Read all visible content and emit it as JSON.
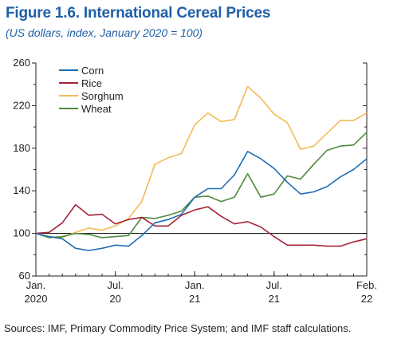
{
  "figure": {
    "title": "Figure 1.6.  International Cereal Prices",
    "subtitle": "(US dollars, index, January 2020 = 100)",
    "source": "Sources: IMF, Primary Commodity Price System; and IMF staff calculations."
  },
  "colors": {
    "Corn": "#1f6fb5",
    "Rice": "#a3253a",
    "Sorghum": "#f2bb57",
    "Wheat": "#4f8a3c",
    "baseline": "#000000",
    "axis": "#231f20"
  },
  "chart_data": {
    "type": "line",
    "title": "Figure 1.6.  International Cereal Prices",
    "subtitle": "(US dollars, index, January 2020 = 100)",
    "x": [
      "2020-01",
      "2020-02",
      "2020-03",
      "2020-04",
      "2020-05",
      "2020-06",
      "2020-07",
      "2020-08",
      "2020-09",
      "2020-10",
      "2020-11",
      "2020-12",
      "2021-01",
      "2021-02",
      "2021-03",
      "2021-04",
      "2021-05",
      "2021-06",
      "2021-07",
      "2021-08",
      "2021-09",
      "2021-10",
      "2021-11",
      "2021-12",
      "2022-01",
      "2022-02"
    ],
    "x_tick_labels": [
      {
        "x": "2020-01",
        "line1": "Jan.",
        "line2": "2020"
      },
      {
        "x": "2020-07",
        "line1": "Jul.",
        "line2": "20"
      },
      {
        "x": "2021-01",
        "line1": "Jan.",
        "line2": "21"
      },
      {
        "x": "2021-07",
        "line1": "Jul.",
        "line2": "21"
      },
      {
        "x": "2022-02",
        "line1": "Feb.",
        "line2": "22"
      }
    ],
    "ylim": [
      60,
      260
    ],
    "y_ticks": [
      60,
      100,
      140,
      180,
      220,
      260
    ],
    "baseline": 100,
    "grid": false,
    "legend_placement": "top-left",
    "series": [
      {
        "name": "Corn",
        "values": [
          100,
          97,
          95,
          86,
          84,
          86,
          89,
          88,
          98,
          110,
          113,
          118,
          134,
          142,
          142,
          155,
          177,
          170,
          161,
          148,
          137,
          139,
          144,
          153,
          160,
          170
        ]
      },
      {
        "name": "Rice",
        "values": [
          100,
          101,
          110,
          127,
          117,
          118,
          109,
          113,
          115,
          107,
          107,
          117,
          122,
          125,
          116,
          109,
          111,
          106,
          97,
          89,
          89,
          89,
          88,
          88,
          92,
          95
        ]
      },
      {
        "name": "Sorghum",
        "values": [
          100,
          97,
          96,
          101,
          105,
          103,
          107,
          114,
          130,
          165,
          171,
          175,
          202,
          213,
          205,
          207,
          238,
          227,
          212,
          204,
          179,
          182,
          194,
          206,
          206,
          213
        ]
      },
      {
        "name": "Wheat",
        "values": [
          100,
          96,
          97,
          100,
          99,
          96,
          97,
          98,
          115,
          114,
          117,
          121,
          134,
          135,
          130,
          134,
          156,
          134,
          137,
          154,
          151,
          165,
          178,
          182,
          183,
          195
        ]
      }
    ]
  }
}
